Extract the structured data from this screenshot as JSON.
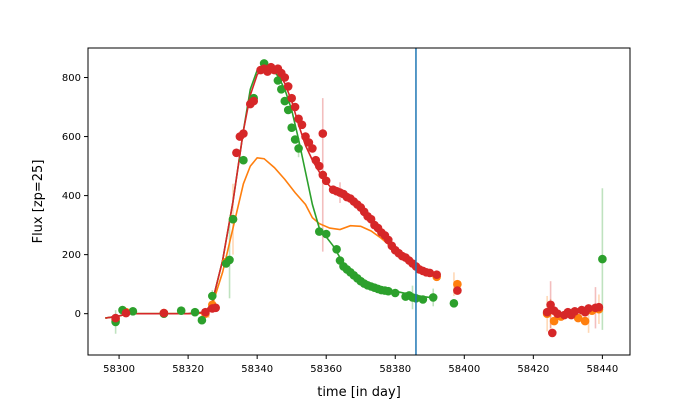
{
  "chart_data": {
    "type": "scatter",
    "xlabel": "time [in day]",
    "ylabel": "Flux [zp=25]",
    "xlim": [
      58291,
      58448
    ],
    "ylim": [
      -140,
      900
    ],
    "xticks": [
      58300,
      58320,
      58340,
      58360,
      58380,
      58400,
      58420,
      58440
    ],
    "yticks": [
      0,
      200,
      400,
      600,
      800
    ],
    "xtick_labels": [
      "58300",
      "58320",
      "58340",
      "58360",
      "58380",
      "58400",
      "58420",
      "58440"
    ],
    "ytick_labels": [
      "0",
      "200",
      "400",
      "600",
      "800"
    ],
    "grid": false,
    "legend": "none",
    "vline": {
      "x": 58386,
      "color": "#1f77b4"
    },
    "series": [
      {
        "color": "#ff7f0e",
        "points": [
          [
            58299,
            -20
          ],
          [
            58302,
            5
          ],
          [
            58313,
            2
          ],
          [
            58325,
            0
          ],
          [
            58327,
            30
          ],
          [
            58331,
            175
          ],
          [
            58333,
            320
          ],
          [
            58392,
            125
          ],
          [
            58398,
            100
          ],
          [
            58424,
            0
          ],
          [
            58426,
            -25
          ],
          [
            58428,
            -10
          ],
          [
            58433,
            -15
          ],
          [
            58435,
            -25
          ],
          [
            58437,
            10
          ],
          [
            58439,
            15
          ]
        ],
        "errors": [
          [
            58326,
            15
          ],
          [
            58333,
            120
          ],
          [
            58397,
            40
          ],
          [
            58424,
            60
          ],
          [
            58425,
            50
          ],
          [
            58436,
            40
          ],
          [
            58439,
            50
          ]
        ],
        "model": [
          [
            58296,
            -15
          ],
          [
            58299,
            -10
          ],
          [
            58303,
            0
          ],
          [
            58310,
            0
          ],
          [
            58320,
            0
          ],
          [
            58325,
            2
          ],
          [
            58327,
            30
          ],
          [
            58330,
            140
          ],
          [
            58333,
            290
          ],
          [
            58336,
            440
          ],
          [
            58338,
            500
          ],
          [
            58340,
            528
          ],
          [
            58342,
            525
          ],
          [
            58345,
            495
          ],
          [
            58348,
            455
          ],
          [
            58351,
            410
          ],
          [
            58354,
            370
          ],
          [
            58356,
            325
          ],
          [
            58358,
            305
          ],
          [
            58361,
            290
          ],
          [
            58364,
            285
          ],
          [
            58367,
            298
          ],
          [
            58370,
            296
          ],
          [
            58373,
            280
          ],
          [
            58376,
            255
          ],
          [
            58380,
            215
          ],
          [
            58383,
            180
          ],
          [
            58386,
            150
          ],
          [
            58389,
            130
          ],
          [
            58392,
            125
          ]
        ]
      },
      {
        "color": "#2ca02c",
        "points": [
          [
            58299,
            -28
          ],
          [
            58301,
            12
          ],
          [
            58304,
            8
          ],
          [
            58313,
            0
          ],
          [
            58318,
            10
          ],
          [
            58322,
            5
          ],
          [
            58324,
            -22
          ],
          [
            58327,
            60
          ],
          [
            58331,
            170
          ],
          [
            58332,
            182
          ],
          [
            58333,
            320
          ],
          [
            58336,
            520
          ],
          [
            58339,
            730
          ],
          [
            58342,
            848
          ],
          [
            58344,
            830
          ],
          [
            58346,
            790
          ],
          [
            58347,
            760
          ],
          [
            58348,
            720
          ],
          [
            58349,
            690
          ],
          [
            58350,
            630
          ],
          [
            58351,
            590
          ],
          [
            58352,
            560
          ],
          [
            58358,
            278
          ],
          [
            58360,
            270
          ],
          [
            58363,
            218
          ],
          [
            58364,
            180
          ],
          [
            58365,
            160
          ],
          [
            58366,
            150
          ],
          [
            58367,
            140
          ],
          [
            58368,
            130
          ],
          [
            58369,
            120
          ],
          [
            58370,
            110
          ],
          [
            58371,
            102
          ],
          [
            58372,
            96
          ],
          [
            58373,
            92
          ],
          [
            58374,
            88
          ],
          [
            58375,
            84
          ],
          [
            58376,
            80
          ],
          [
            58377,
            78
          ],
          [
            58378,
            76
          ],
          [
            58380,
            70
          ],
          [
            58383,
            58
          ],
          [
            58384,
            62
          ],
          [
            58385,
            55
          ],
          [
            58386,
            52
          ],
          [
            58388,
            48
          ],
          [
            58391,
            55
          ],
          [
            58397,
            35
          ],
          [
            58440,
            185
          ]
        ],
        "errors": [
          [
            58299,
            40
          ],
          [
            58327,
            20
          ],
          [
            58332,
            130
          ],
          [
            58352,
            30
          ],
          [
            58385,
            40
          ],
          [
            58391,
            30
          ],
          [
            58440,
            240
          ]
        ],
        "model": [
          [
            58296,
            -15
          ],
          [
            58299,
            -10
          ],
          [
            58303,
            0
          ],
          [
            58310,
            0
          ],
          [
            58320,
            0
          ],
          [
            58325,
            5
          ],
          [
            58327,
            40
          ],
          [
            58330,
            180
          ],
          [
            58333,
            380
          ],
          [
            58336,
            620
          ],
          [
            58338,
            760
          ],
          [
            58340,
            825
          ],
          [
            58342,
            840
          ],
          [
            58344,
            832
          ],
          [
            58346,
            805
          ],
          [
            58348,
            760
          ],
          [
            58350,
            690
          ],
          [
            58352,
            590
          ],
          [
            58354,
            480
          ],
          [
            58356,
            370
          ],
          [
            58358,
            290
          ],
          [
            58360,
            260
          ],
          [
            58362,
            230
          ],
          [
            58364,
            190
          ],
          [
            58366,
            155
          ],
          [
            58368,
            130
          ],
          [
            58370,
            115
          ],
          [
            58373,
            100
          ],
          [
            58376,
            88
          ],
          [
            58380,
            76
          ],
          [
            58384,
            66
          ],
          [
            58388,
            58
          ],
          [
            58392,
            52
          ]
        ]
      },
      {
        "color": "#d62728",
        "points": [
          [
            58299,
            -15
          ],
          [
            58302,
            2
          ],
          [
            58313,
            2
          ],
          [
            58325,
            5
          ],
          [
            58327,
            18
          ],
          [
            58328,
            20
          ],
          [
            58334,
            545
          ],
          [
            58335,
            600
          ],
          [
            58336,
            610
          ],
          [
            58338,
            710
          ],
          [
            58339,
            720
          ],
          [
            58341,
            825
          ],
          [
            58342,
            830
          ],
          [
            58343,
            820
          ],
          [
            58344,
            835
          ],
          [
            58345,
            825
          ],
          [
            58346,
            830
          ],
          [
            58347,
            815
          ],
          [
            58348,
            800
          ],
          [
            58349,
            770
          ],
          [
            58350,
            730
          ],
          [
            58351,
            700
          ],
          [
            58352,
            660
          ],
          [
            58353,
            640
          ],
          [
            58354,
            600
          ],
          [
            58355,
            580
          ],
          [
            58356,
            560
          ],
          [
            58357,
            520
          ],
          [
            58358,
            500
          ],
          [
            58359,
            470
          ],
          [
            58360,
            450
          ],
          [
            58359,
            610
          ],
          [
            58362,
            420
          ],
          [
            58363,
            415
          ],
          [
            58364,
            410
          ],
          [
            58365,
            405
          ],
          [
            58366,
            395
          ],
          [
            58367,
            390
          ],
          [
            58368,
            380
          ],
          [
            58369,
            370
          ],
          [
            58370,
            360
          ],
          [
            58371,
            345
          ],
          [
            58372,
            330
          ],
          [
            58373,
            320
          ],
          [
            58374,
            300
          ],
          [
            58375,
            290
          ],
          [
            58376,
            275
          ],
          [
            58377,
            265
          ],
          [
            58378,
            250
          ],
          [
            58379,
            230
          ],
          [
            58380,
            215
          ],
          [
            58381,
            205
          ],
          [
            58382,
            195
          ],
          [
            58383,
            190
          ],
          [
            58384,
            180
          ],
          [
            58385,
            170
          ],
          [
            58386,
            160
          ],
          [
            58387,
            150
          ],
          [
            58388,
            145
          ],
          [
            58389,
            140
          ],
          [
            58390,
            138
          ],
          [
            58392,
            132
          ],
          [
            58398,
            78
          ],
          [
            58424,
            5
          ],
          [
            58425,
            30
          ],
          [
            58425.5,
            -65
          ],
          [
            58426,
            10
          ],
          [
            58427,
            0
          ],
          [
            58429,
            -5
          ],
          [
            58430,
            5
          ],
          [
            58431,
            -5
          ],
          [
            58432,
            8
          ],
          [
            58434,
            12
          ],
          [
            58435,
            5
          ],
          [
            58436,
            18
          ],
          [
            58438,
            20
          ],
          [
            58439,
            22
          ]
        ],
        "errors": [
          [
            58359,
            260
          ],
          [
            58364,
            35
          ],
          [
            58425,
            80
          ],
          [
            58438,
            70
          ]
        ],
        "model": [
          [
            58296,
            -15
          ],
          [
            58299,
            -10
          ],
          [
            58303,
            0
          ],
          [
            58310,
            0
          ],
          [
            58320,
            0
          ],
          [
            58325,
            5
          ],
          [
            58327,
            40
          ],
          [
            58330,
            180
          ],
          [
            58333,
            380
          ],
          [
            58336,
            620
          ],
          [
            58338,
            740
          ],
          [
            58340,
            810
          ],
          [
            58342,
            835
          ],
          [
            58344,
            835
          ],
          [
            58346,
            820
          ],
          [
            58348,
            780
          ],
          [
            58350,
            720
          ],
          [
            58352,
            640
          ],
          [
            58354,
            570
          ],
          [
            58356,
            520
          ],
          [
            58358,
            480
          ],
          [
            58360,
            445
          ],
          [
            58362,
            420
          ],
          [
            58364,
            405
          ],
          [
            58366,
            395
          ],
          [
            58368,
            380
          ],
          [
            58370,
            360
          ],
          [
            58372,
            330
          ],
          [
            58374,
            300
          ],
          [
            58376,
            275
          ],
          [
            58378,
            250
          ],
          [
            58380,
            225
          ],
          [
            58382,
            200
          ],
          [
            58384,
            180
          ],
          [
            58386,
            165
          ],
          [
            58388,
            150
          ],
          [
            58390,
            140
          ],
          [
            58392,
            125
          ]
        ]
      }
    ]
  }
}
